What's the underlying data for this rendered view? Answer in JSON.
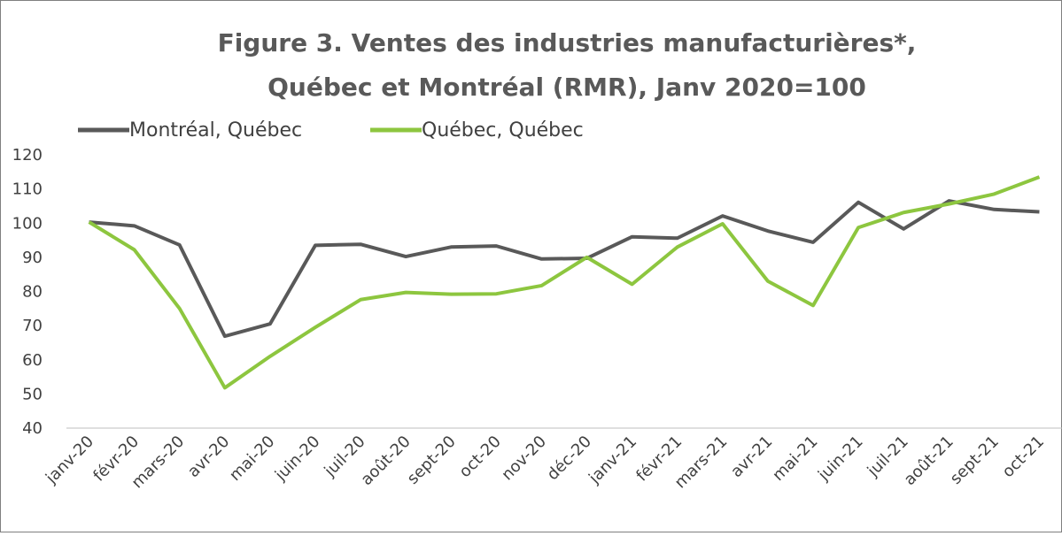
{
  "chart_data": {
    "type": "line",
    "title": [
      "Figure 3. Ventes des industries manufacturières*,",
      "Québec et Montréal (RMR), Janv 2020=100"
    ],
    "categories": [
      "janv-20",
      "févr-20",
      "mars-20",
      "avr-20",
      "mai-20",
      "juin-20",
      "juil-20",
      "août-20",
      "sept-20",
      "oct-20",
      "nov-20",
      "déc-20",
      "janv-21",
      "févr-21",
      "mars-21",
      "avr-21",
      "mai-21",
      "juin-21",
      "juil-21",
      "août-21",
      "sept-21",
      "oct-21"
    ],
    "series": [
      {
        "name": "Montréal, Québec",
        "color": "#595959",
        "values": [
          100.3,
          99.2,
          93.6,
          66.9,
          70.5,
          93.5,
          93.8,
          90.2,
          93.0,
          93.3,
          89.5,
          89.7,
          96.0,
          95.6,
          102.1,
          97.7,
          94.4,
          106.1,
          98.3,
          106.5,
          104.0,
          103.3
        ]
      },
      {
        "name": "Québec, Québec",
        "color": "#8dc63f",
        "values": [
          100.3,
          92.2,
          75.0,
          51.8,
          61.0,
          69.5,
          77.6,
          79.7,
          79.2,
          79.3,
          81.7,
          90.0,
          82.1,
          93.0,
          99.8,
          83.0,
          75.9,
          98.7,
          103.1,
          105.6,
          108.5,
          113.5
        ]
      }
    ],
    "ylim": [
      40,
      120
    ],
    "yticks": [
      40,
      50,
      60,
      70,
      80,
      90,
      100,
      110,
      120
    ],
    "grid": false,
    "legend": "top-left"
  }
}
